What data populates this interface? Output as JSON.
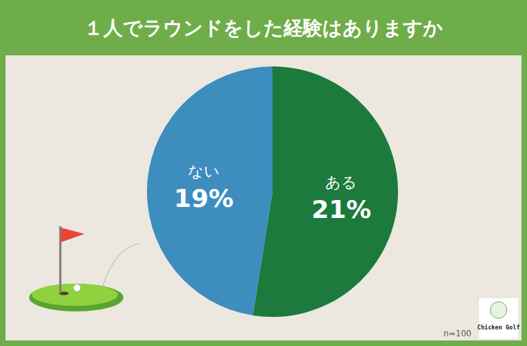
{
  "chart_data": {
    "type": "pie",
    "title": "１人でラウンドをした経験はありますか",
    "categories": [
      "ある",
      "ない"
    ],
    "values": [
      21,
      19
    ],
    "value_labels": [
      "21%",
      "19%"
    ],
    "colors": [
      "#1b7a3c",
      "#3d8dbf"
    ],
    "data_labels": true,
    "annotations": [
      "n=100"
    ],
    "logo": "Chicken Golf"
  }
}
